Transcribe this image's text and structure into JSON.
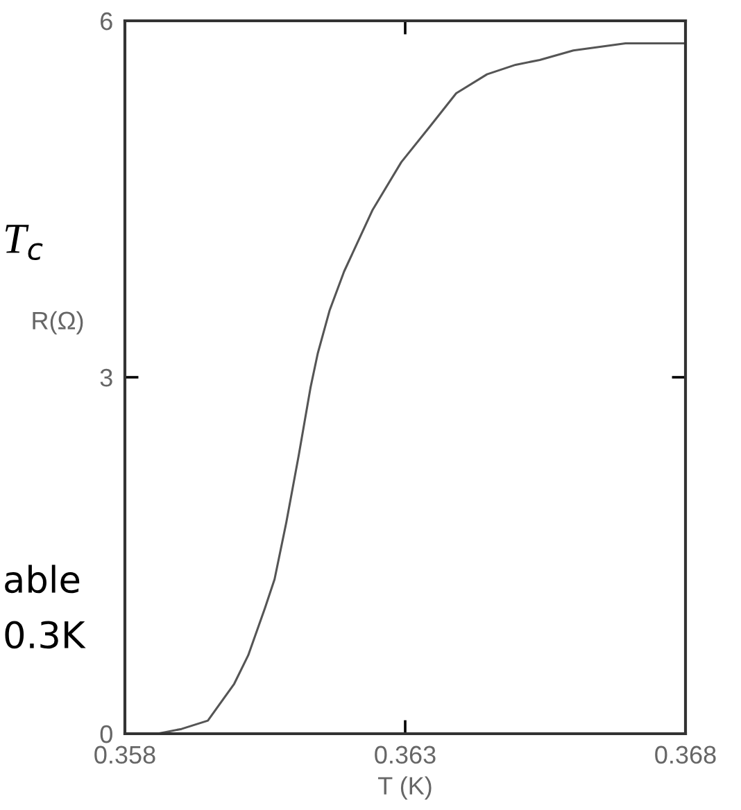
{
  "chart_data": {
    "type": "line",
    "xlabel": "T (K)",
    "ylabel": "R(Ω)",
    "annotations": [
      "T$_{c}$",
      "able",
      "0.3K"
    ],
    "x": [
      0.358,
      0.35858,
      0.35901,
      0.35948,
      0.35995,
      0.3602,
      0.3605,
      0.36067,
      0.36088,
      0.3611,
      0.36131,
      0.36144,
      0.36165,
      0.36191,
      0.36242,
      0.36293,
      0.36344,
      0.36391,
      0.36446,
      0.36497,
      0.3654,
      0.366,
      0.36693,
      0.368
    ],
    "series": [
      {
        "color": "#555555",
        "values": [
          0.0,
          0.0,
          0.04,
          0.11,
          0.42,
          0.66,
          1.06,
          1.3,
          1.78,
          2.34,
          2.91,
          3.2,
          3.56,
          3.89,
          4.41,
          4.81,
          5.11,
          5.39,
          5.55,
          5.63,
          5.67,
          5.75,
          5.81,
          5.81
        ]
      }
    ],
    "xlim": [
      0.358,
      0.368
    ],
    "xticks": [
      0.358,
      0.363,
      0.368
    ],
    "ylim": [
      0,
      6
    ],
    "yticks": [
      0,
      3,
      6
    ],
    "grid": false,
    "marker": "none",
    "line_style": "solid"
  }
}
